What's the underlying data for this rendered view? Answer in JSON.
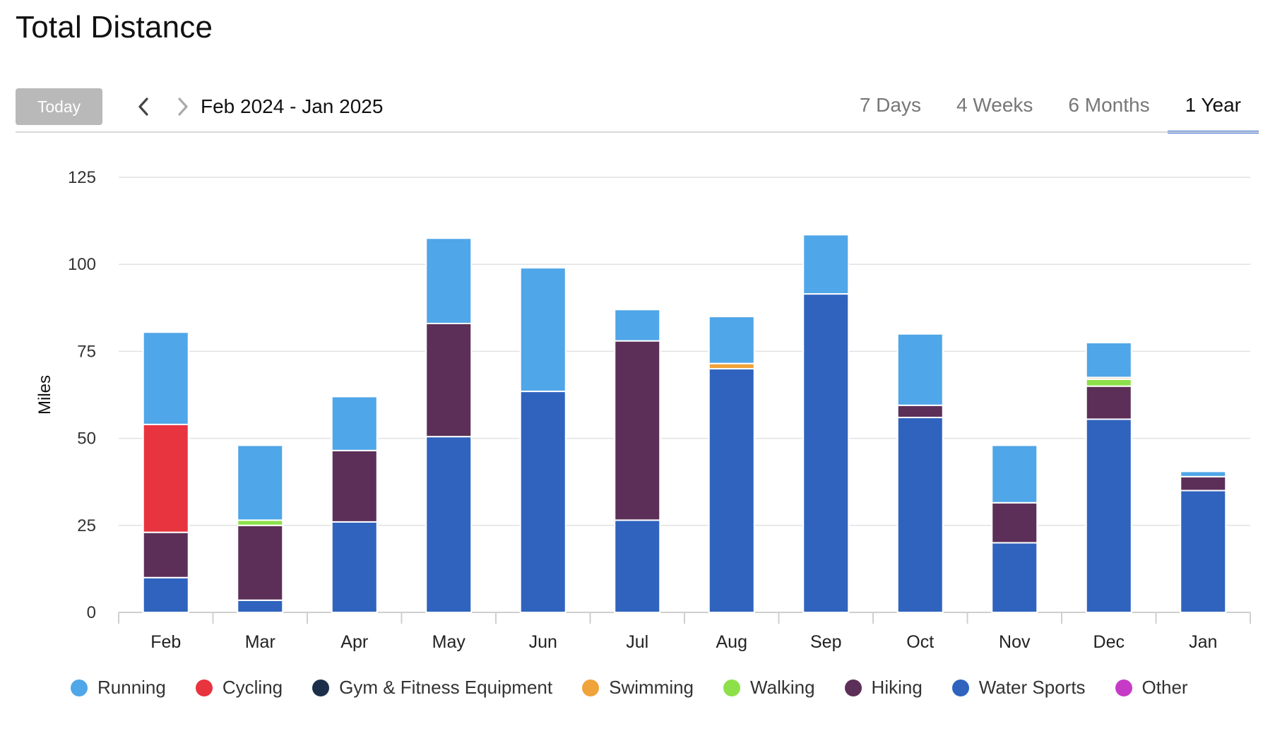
{
  "title": "Total Distance",
  "toolbar": {
    "today_label": "Today",
    "prev_icon": "chevron-left-icon",
    "next_icon": "chevron-right-icon",
    "range_label": "Feb 2024 - Jan 2025",
    "tabs": [
      {
        "label": "7 Days",
        "active": false
      },
      {
        "label": "4 Weeks",
        "active": false
      },
      {
        "label": "6 Months",
        "active": false
      },
      {
        "label": "1 Year",
        "active": true
      }
    ]
  },
  "chart_data": {
    "type": "bar",
    "stacked": true,
    "ylabel": "Miles",
    "ylim": [
      0,
      125
    ],
    "yticks": [
      0,
      25,
      50,
      75,
      100,
      125
    ],
    "grid": true,
    "legend_position": "bottom",
    "categories": [
      "Feb",
      "Mar",
      "Apr",
      "May",
      "Jun",
      "Jul",
      "Aug",
      "Sep",
      "Oct",
      "Nov",
      "Dec",
      "Jan"
    ],
    "series": [
      {
        "name": "Water Sports",
        "color": "#2f63be",
        "values": [
          10,
          3.5,
          26,
          50.5,
          63.5,
          26.5,
          70,
          91.5,
          56,
          20,
          55.5,
          35
        ]
      },
      {
        "name": "Hiking",
        "color": "#5c2f58",
        "values": [
          13,
          21.5,
          20.5,
          32.5,
          0,
          51.5,
          0,
          0,
          3.5,
          11.5,
          9.5,
          4
        ]
      },
      {
        "name": "Walking",
        "color": "#8de04a",
        "values": [
          0,
          1.5,
          0,
          0,
          0,
          0,
          0,
          0,
          0,
          0,
          2,
          0
        ]
      },
      {
        "name": "Swimming",
        "color": "#f0a33a",
        "values": [
          0,
          0,
          0,
          0,
          0,
          0,
          1.5,
          0,
          0,
          0,
          0.5,
          0
        ]
      },
      {
        "name": "Gym & Fitness Equipment",
        "color": "#1c2f4a",
        "values": [
          0,
          0,
          0,
          0,
          0,
          0,
          0,
          0,
          0,
          0,
          0,
          0
        ]
      },
      {
        "name": "Cycling",
        "color": "#e8343f",
        "values": [
          31,
          0,
          0,
          0,
          0,
          0,
          0,
          0,
          0,
          0,
          0,
          0
        ]
      },
      {
        "name": "Running",
        "color": "#4fa6e8",
        "values": [
          26.5,
          21.5,
          15.5,
          24.5,
          35.5,
          9,
          13.5,
          17,
          20.5,
          16.5,
          10,
          1.5
        ]
      },
      {
        "name": "Other",
        "color": "#c63bc6",
        "values": [
          0,
          0,
          0,
          0,
          0,
          0,
          0,
          0,
          0,
          0,
          0,
          0
        ]
      }
    ]
  },
  "legend": [
    {
      "label": "Running",
      "color": "#4fa6e8"
    },
    {
      "label": "Cycling",
      "color": "#e8343f"
    },
    {
      "label": "Gym & Fitness Equipment",
      "color": "#1c2f4a"
    },
    {
      "label": "Swimming",
      "color": "#f0a33a"
    },
    {
      "label": "Walking",
      "color": "#8de04a"
    },
    {
      "label": "Hiking",
      "color": "#5c2f58"
    },
    {
      "label": "Water Sports",
      "color": "#2f63be"
    },
    {
      "label": "Other",
      "color": "#c63bc6"
    }
  ]
}
